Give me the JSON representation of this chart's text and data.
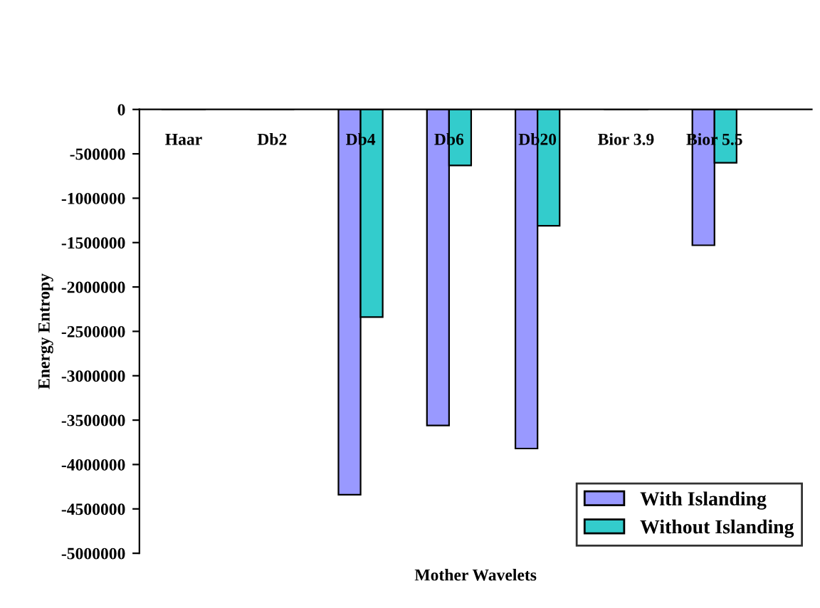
{
  "chart_data": {
    "type": "bar",
    "xlabel": "Mother Wavelets",
    "ylabel": "Energy Entropy",
    "categories": [
      "Haar",
      "Db2",
      "Db4",
      "Db6",
      "Db20",
      "Bior 3.9",
      "Bior 5.5"
    ],
    "series": [
      {
        "name": "With Islanding",
        "color": "#9999ff",
        "values": [
          0,
          0,
          -4340000,
          -3560000,
          -3820000,
          0,
          -1530000
        ]
      },
      {
        "name": "Without Islanding",
        "color": "#33cccc",
        "values": [
          0,
          0,
          -2340000,
          -630000,
          -1310000,
          0,
          -600000
        ]
      }
    ],
    "ylim": [
      -5000000,
      0
    ],
    "yticks": [
      0,
      -500000,
      -1000000,
      -1500000,
      -2000000,
      -2500000,
      -3000000,
      -3500000,
      -4000000,
      -4500000,
      -5000000
    ],
    "grid": false,
    "legend": "bottom right"
  }
}
